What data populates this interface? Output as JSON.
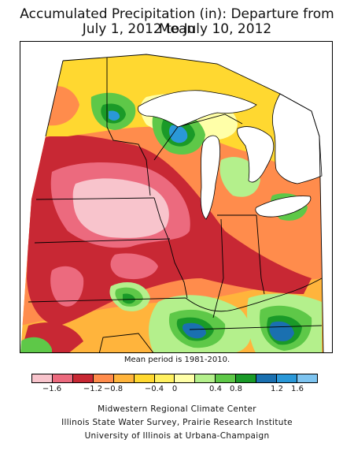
{
  "title": {
    "line1": "Accumulated Precipitation (in): Departure from Mean",
    "line2": "July 1, 2012 to July 10, 2012"
  },
  "note": "Mean period is 1981-2010.",
  "legend": {
    "colors": [
      "#f8c4cc",
      "#ec6a7e",
      "#c82834",
      "#ff8c4c",
      "#ffb43c",
      "#ffd830",
      "#fff060",
      "#ffffa8",
      "#b4f08c",
      "#5ec848",
      "#1a9a28",
      "#1a70b0",
      "#2a98d8",
      "#7ec4f0"
    ],
    "ticks": [
      "−1.6",
      "−1.2",
      "−0.8",
      "−0.4",
      "0",
      "0.4",
      "0.8",
      "1.2",
      "1.6"
    ]
  },
  "credits": [
    "Midwestern Regional Climate Center",
    "Illinois State Water Survey, Prairie Research Institute",
    "University of Illinois at Urbana-Champaign"
  ],
  "map_colors": {
    "dry_extreme": "#f8c4cc",
    "dry_strong": "#ec6a7e",
    "dry": "#c82834",
    "dry_mod": "#ff8c4c",
    "dry_light": "#ffb43c",
    "near_dry": "#ffd830",
    "near_zero": "#fff060",
    "slight_wet": "#ffffa8",
    "wet_light": "#b4f08c",
    "wet": "#5ec848",
    "wet_mod": "#1a9a28",
    "wet_strong": "#1a70b0",
    "wet_high": "#2a98d8",
    "lake": "#ffffff"
  }
}
